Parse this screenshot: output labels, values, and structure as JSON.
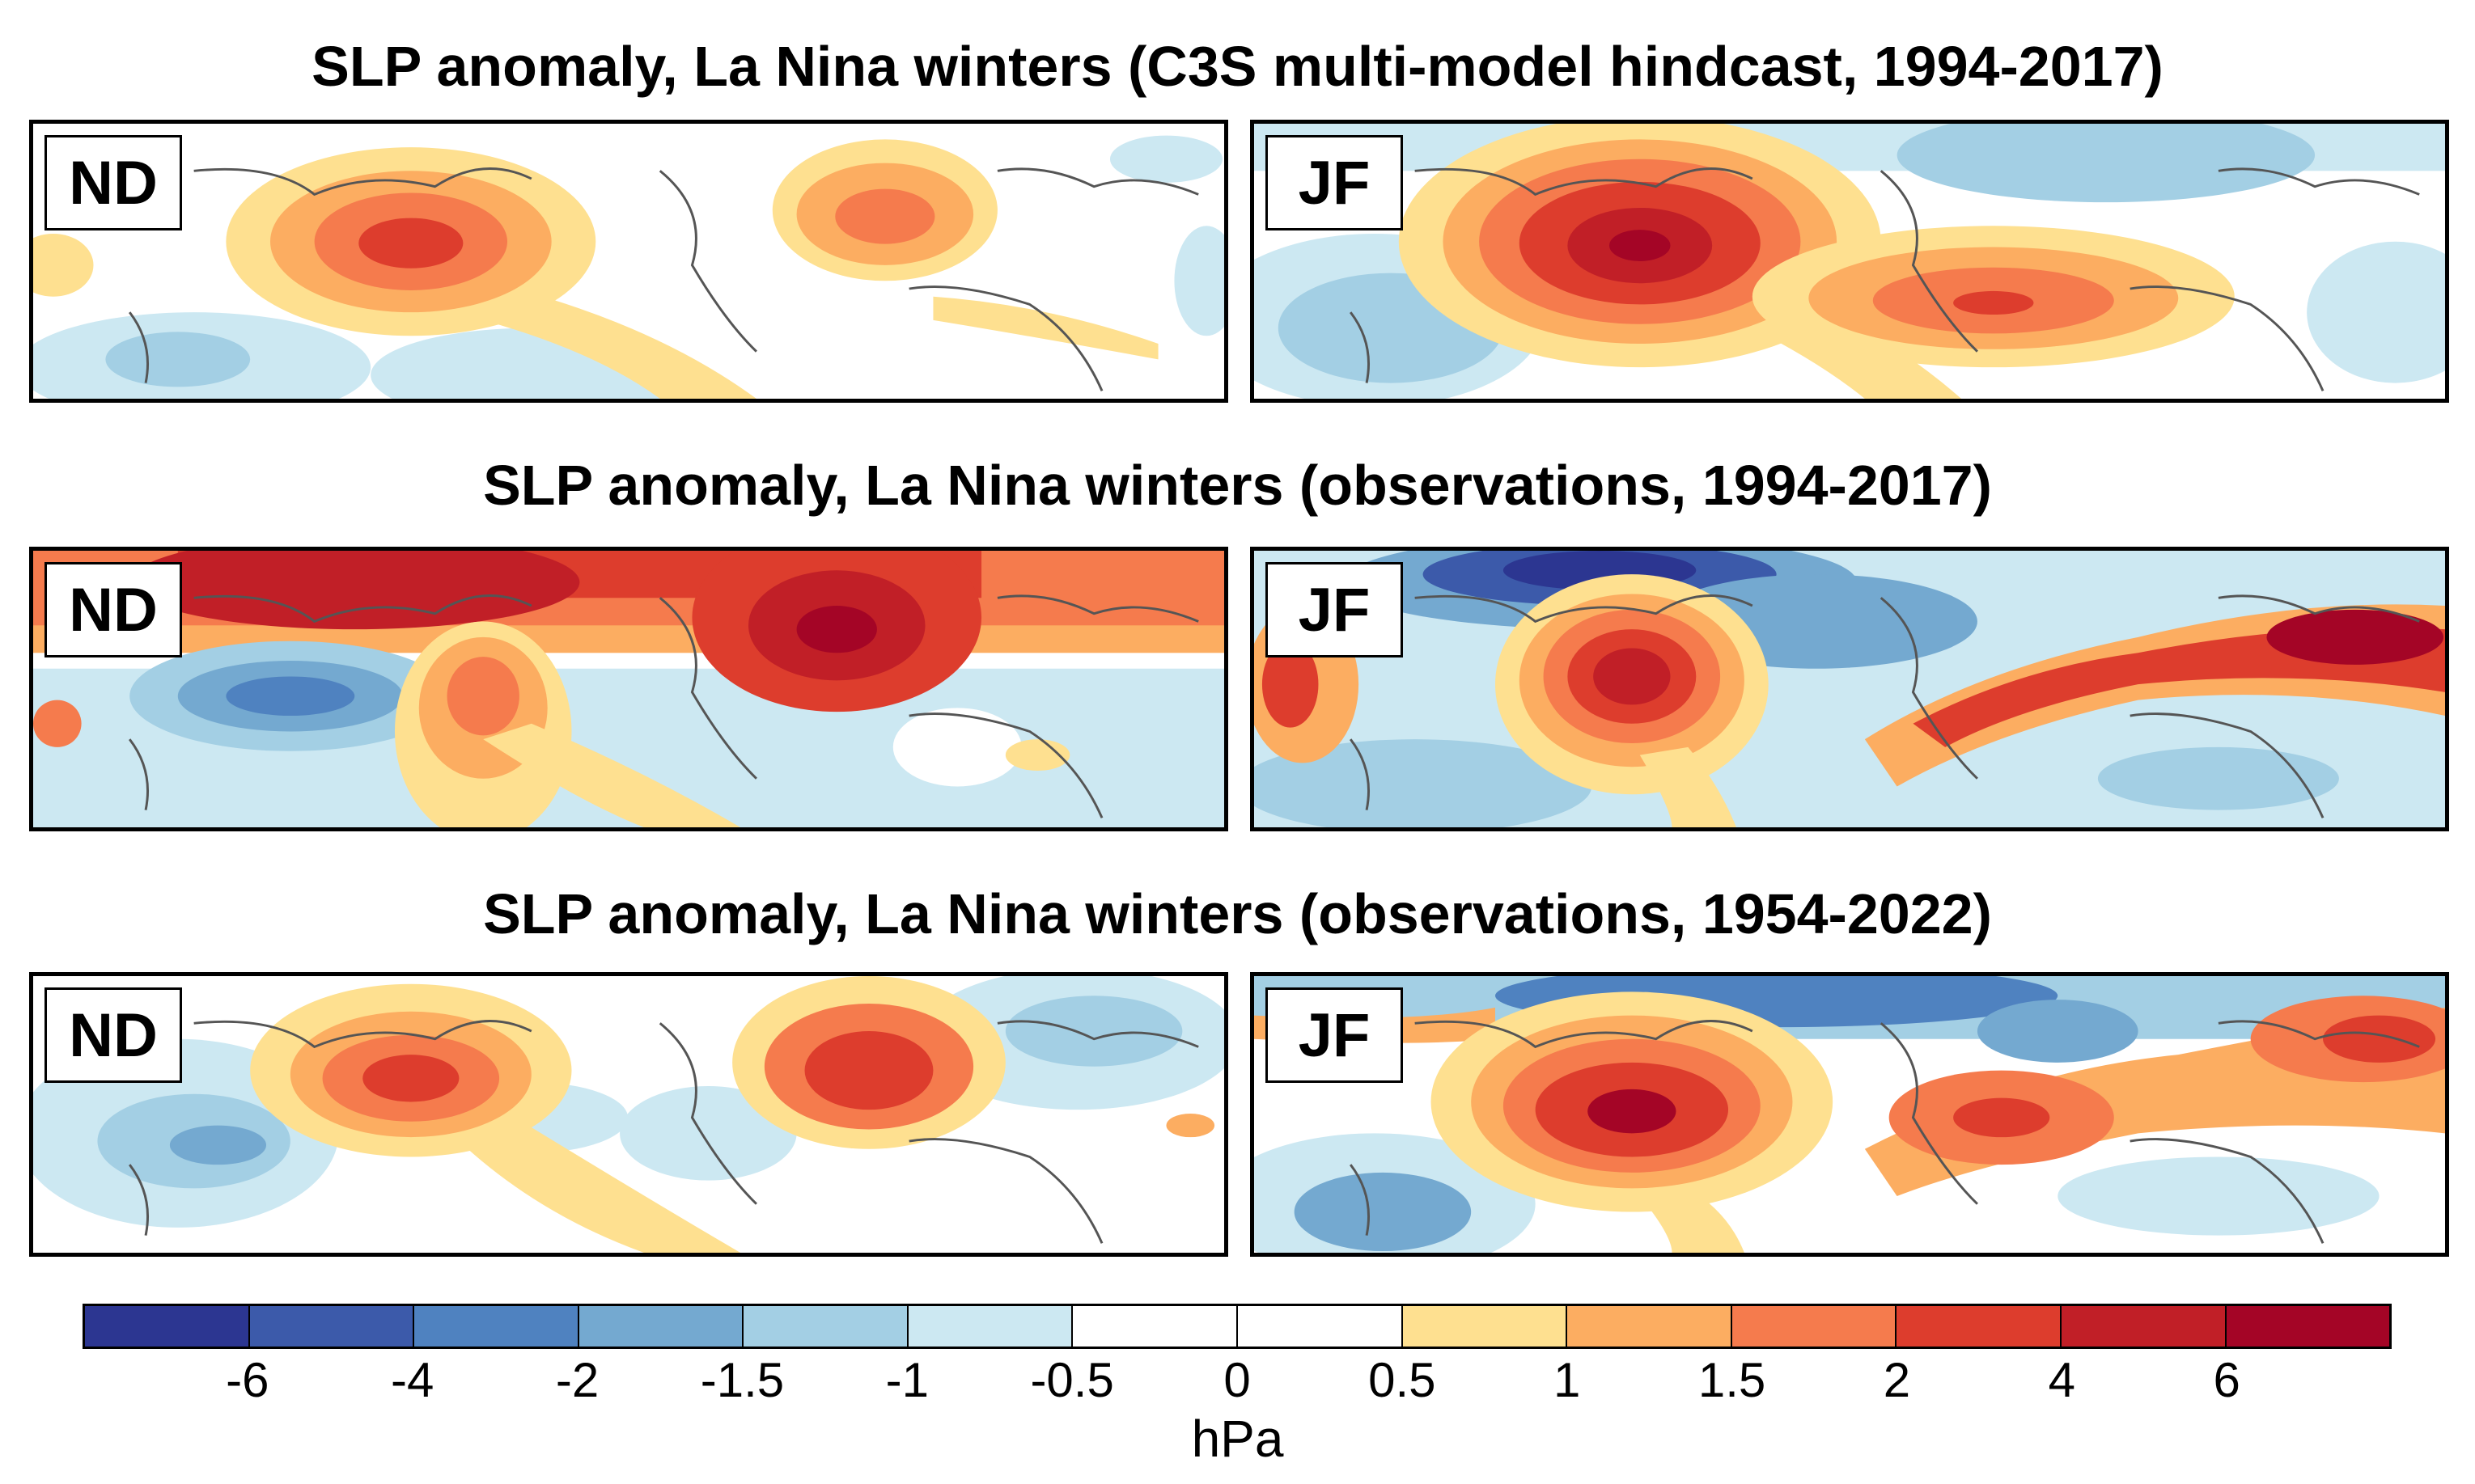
{
  "titles": [
    "SLP anomaly, La Nina winters (C3S multi-model hindcast, 1994-2017)",
    "SLP anomaly, La Nina winters (observations, 1994-2017)",
    "SLP anomaly, La Nina winters (observations, 1954-2022)"
  ],
  "panel_labels": [
    "ND",
    "JF",
    "ND",
    "JF",
    "ND",
    "JF"
  ],
  "colorbar": {
    "ticks": [
      "-6",
      "-4",
      "-2",
      "-1.5",
      "-1",
      "-0.5",
      "0",
      "0.5",
      "1",
      "1.5",
      "2",
      "4",
      "6"
    ],
    "unit": "hPa",
    "colors": [
      "#2c3691",
      "#3c5aaa",
      "#4f82c0",
      "#74a9d0",
      "#a3cfe4",
      "#cce8f2",
      "#ffffff",
      "#ffffff",
      "#fee090",
      "#fcad61",
      "#f57b4d",
      "#dd3d2d",
      "#c11f27",
      "#a40526"
    ]
  }
}
